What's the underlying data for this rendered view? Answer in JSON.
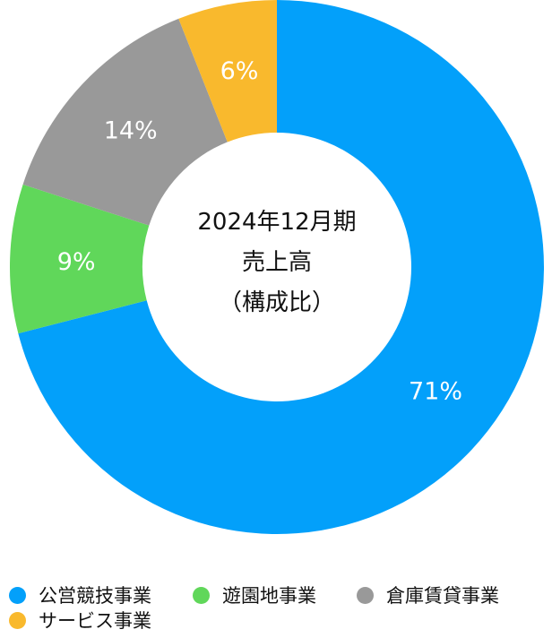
{
  "chart_data": {
    "type": "pie",
    "title": "",
    "center_text": [
      "2024年12月期",
      "売上高",
      "（構成比）"
    ],
    "categories": [
      "公営競技事業",
      "遊園地事業",
      "倉庫賃貸事業",
      "サービス事業"
    ],
    "values": [
      71,
      9,
      14,
      6
    ],
    "value_labels": [
      "71%",
      "9%",
      "14%",
      "6%"
    ],
    "colors": [
      "#03A0FA",
      "#60D75A",
      "#999999",
      "#F9B92D"
    ],
    "legend_position": "bottom-left",
    "donut": true
  },
  "legend": {
    "items": [
      {
        "label": "公営競技事業",
        "color": "#03A0FA"
      },
      {
        "label": "遊園地事業",
        "color": "#60D75A"
      },
      {
        "label": "倉庫賃貸事業",
        "color": "#999999"
      },
      {
        "label": "サービス事業",
        "color": "#F9B92D"
      }
    ]
  }
}
